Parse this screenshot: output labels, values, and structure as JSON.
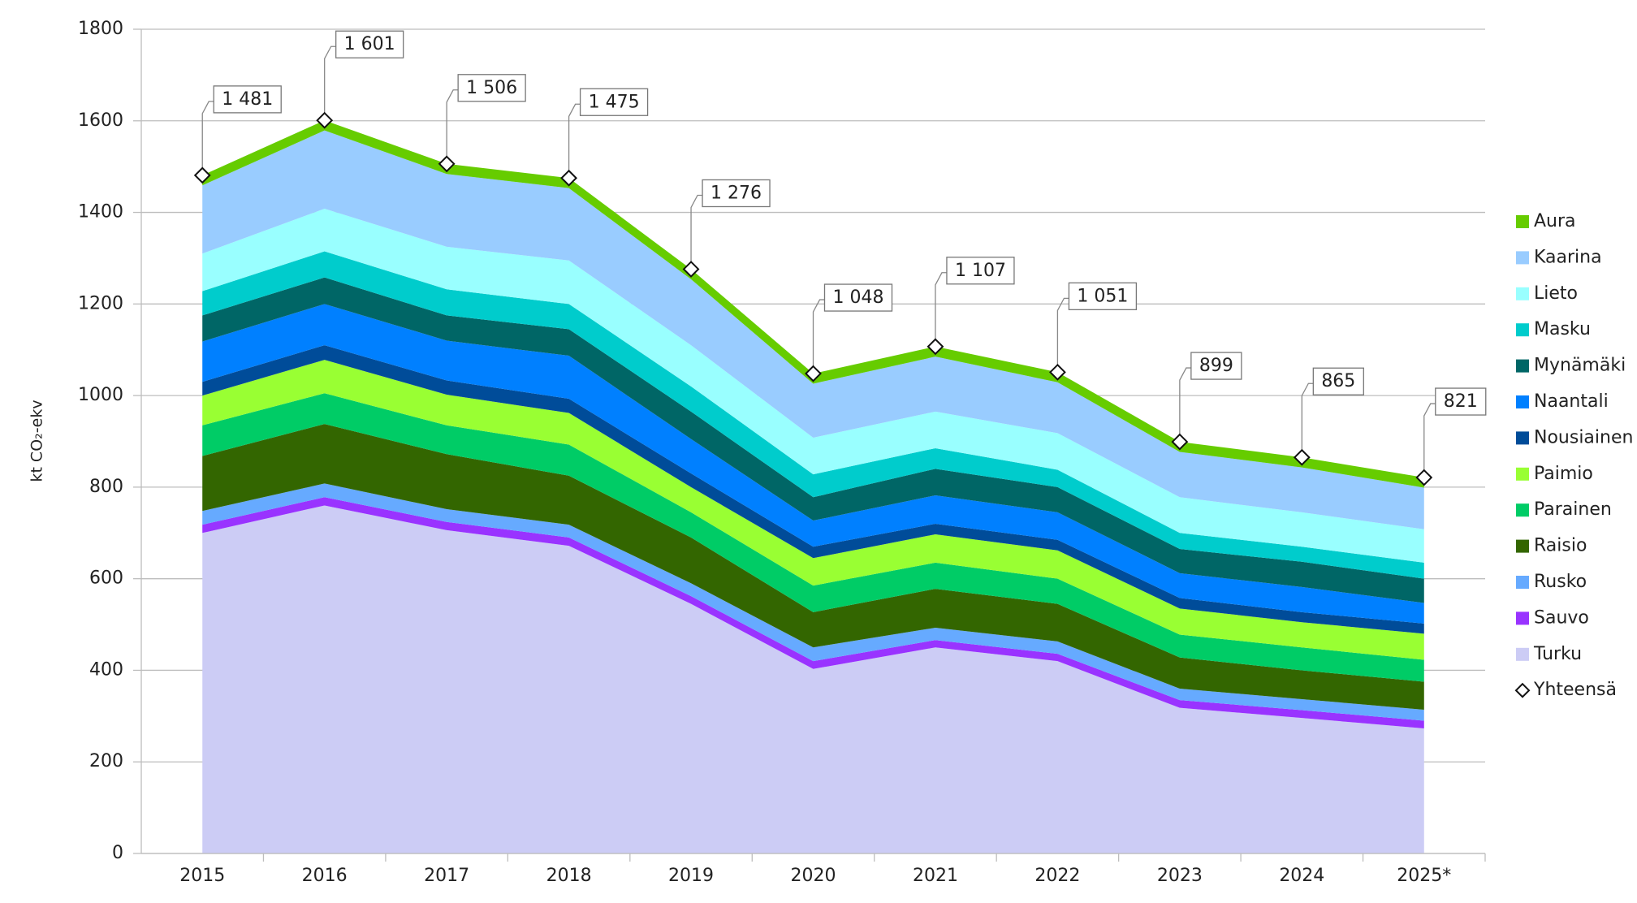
{
  "chart_data": {
    "type": "stacked-area",
    "y_label": "kt CO₂-ekv",
    "categories": [
      "2015",
      "2016",
      "2017",
      "2018",
      "2019",
      "2020",
      "2021",
      "2022",
      "2023",
      "2024",
      "2025*"
    ],
    "ylim": [
      0,
      1800
    ],
    "yticks": [
      0,
      200,
      400,
      600,
      800,
      1000,
      1200,
      1400,
      1600,
      1800
    ],
    "grid": true,
    "legend": "right",
    "series": [
      {
        "name": "Turku",
        "color": "#ccccf5",
        "values": [
          700,
          760,
          706,
          672,
          545,
          403,
          450,
          420,
          318,
          296,
          273
        ]
      },
      {
        "name": "Sauvo",
        "color": "#9933ff",
        "values": [
          18,
          18,
          18,
          18,
          17,
          17,
          16,
          16,
          17,
          17,
          17
        ]
      },
      {
        "name": "Rusko",
        "color": "#66aaff",
        "values": [
          30,
          30,
          28,
          28,
          28,
          30,
          27,
          27,
          25,
          24,
          24
        ]
      },
      {
        "name": "Raisio",
        "color": "#336600",
        "values": [
          120,
          130,
          120,
          107,
          100,
          77,
          85,
          82,
          68,
          63,
          61
        ]
      },
      {
        "name": "Parainen",
        "color": "#00cc66",
        "values": [
          67,
          67,
          63,
          68,
          55,
          58,
          57,
          55,
          50,
          50,
          48
        ]
      },
      {
        "name": "Paimio",
        "color": "#99ff33",
        "values": [
          65,
          73,
          67,
          69,
          55,
          60,
          62,
          62,
          57,
          55,
          57
        ]
      },
      {
        "name": "Nousiainen",
        "color": "#004c99",
        "values": [
          30,
          32,
          31,
          31,
          30,
          25,
          23,
          23,
          23,
          22,
          22
        ]
      },
      {
        "name": "Naantali",
        "color": "#0080ff",
        "values": [
          88,
          90,
          87,
          94,
          75,
          57,
          62,
          60,
          54,
          55,
          45
        ]
      },
      {
        "name": "Mynämäki",
        "color": "#006666",
        "values": [
          57,
          58,
          55,
          58,
          60,
          51,
          58,
          55,
          53,
          55,
          53
        ]
      },
      {
        "name": "Masku",
        "color": "#00cccc",
        "values": [
          53,
          57,
          57,
          55,
          55,
          50,
          45,
          38,
          35,
          33,
          35
        ]
      },
      {
        "name": "Lieto",
        "color": "#99ffff",
        "values": [
          82,
          93,
          93,
          95,
          90,
          80,
          80,
          80,
          78,
          75,
          73
        ]
      },
      {
        "name": "Kaarina",
        "color": "#99ccff",
        "values": [
          149,
          171,
          159,
          158,
          144,
          118,
          120,
          111,
          99,
          98,
          91
        ]
      },
      {
        "name": "Aura",
        "color": "#66cc00",
        "values": [
          22,
          22,
          22,
          22,
          22,
          22,
          22,
          22,
          22,
          22,
          22
        ]
      }
    ],
    "total": {
      "name": "Yhteensä",
      "values": [
        1481,
        1601,
        1506,
        1475,
        1276,
        1048,
        1107,
        1051,
        899,
        865,
        821
      ],
      "value_labels": [
        "1 481",
        "1 601",
        "1 506",
        "1 475",
        "1 276",
        "1 048",
        "1 107",
        "1 051",
        "899",
        "865",
        "821"
      ]
    }
  }
}
